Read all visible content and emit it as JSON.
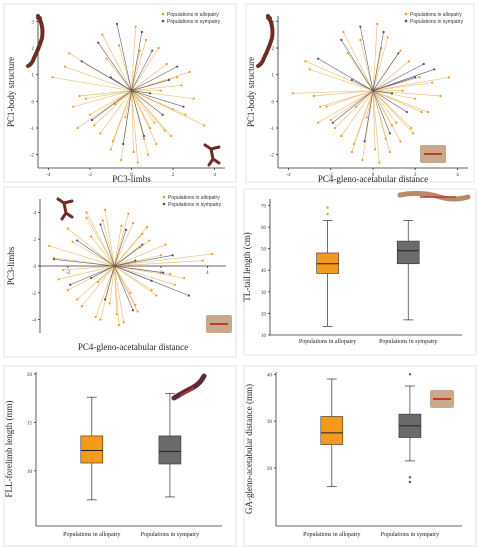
{
  "colors": {
    "allopatry": "#F39A1E",
    "allopatry_vector": "#E8B866",
    "sympatry": "#4A4F63",
    "sympatry_box": "#6B6B6B",
    "frame": "#DDDDDD",
    "animal": "#6E2E28",
    "animal_hand": "#C9A98A"
  },
  "legend": {
    "allopatry": "Populations in allopatry",
    "sympatry": "Populations in sympatry"
  },
  "chart_data": [
    {
      "type": "scatter",
      "subtype": "biplot-vectors",
      "xlabel": "PC3-limbs",
      "ylabel": "PC1-body structure",
      "xticks": [
        "-4",
        "-2",
        "0",
        "2",
        "4"
      ],
      "yticks": [
        "-2",
        "-1",
        "0",
        "1",
        "2",
        "3"
      ],
      "xlim": [
        -4.5,
        4.5
      ],
      "ylim": [
        -2.5,
        3.2
      ],
      "origin": [
        0,
        0.4
      ],
      "series": [
        {
          "name": "Populations in allopatry",
          "x": [
            -3.8,
            -3.2,
            -2.5,
            -2.0,
            -1.5,
            -1.0,
            -0.5,
            0.3,
            0.8,
            1.2,
            1.6,
            2.0,
            2.4,
            2.8,
            3.5,
            -2.8,
            -1.8,
            -0.9,
            0.1,
            0.6,
            1.1,
            1.9,
            -3.0,
            -2.2,
            -0.3,
            0.9,
            1.4,
            2.2,
            -1.2,
            -0.6,
            0.4,
            1.7,
            2.6,
            -2.6,
            -1.4,
            0.2,
            0.7,
            1.3,
            3.0,
            -0.8
          ],
          "y": [
            0.9,
            1.3,
            0.2,
            -0.5,
            -1.2,
            -1.8,
            -2.2,
            -2.3,
            -2.0,
            -1.6,
            -1.1,
            -0.3,
            0.6,
            1.1,
            -0.9,
            -0.2,
            -0.9,
            -1.5,
            -1.9,
            -1.4,
            -0.8,
            -1.3,
            1.8,
            0.1,
            -0.6,
            -1.0,
            0.4,
            0.9,
            1.6,
            2.1,
            1.9,
            1.4,
            -0.5,
            -1.0,
            2.5,
            2.8,
            2.3,
            2.0,
            0.1,
            -0.1
          ]
        },
        {
          "name": "Populations in sympatry",
          "x": [
            -2.4,
            -1.6,
            -0.7,
            0.5,
            1.0,
            1.8,
            2.5,
            -1.9,
            -0.4,
            0.6,
            1.5,
            2.2,
            -1.0,
            0.9
          ],
          "y": [
            1.5,
            2.2,
            2.9,
            2.6,
            1.9,
            0.8,
            -0.2,
            -0.7,
            -1.6,
            -1.3,
            -0.5,
            1.3,
            0.9,
            0.3
          ]
        }
      ]
    },
    {
      "type": "scatter",
      "subtype": "biplot-vectors",
      "xlabel": "PC4-gleno-acetabular distance",
      "ylabel": "PC1-body structure",
      "xticks": [
        "-4",
        "-2",
        "0",
        "2",
        "4"
      ],
      "yticks": [
        "-2",
        "-1",
        "0",
        "1",
        "2",
        "3"
      ],
      "xlim": [
        -4.5,
        4.5
      ],
      "ylim": [
        -2.5,
        3.2
      ],
      "origin": [
        0,
        0.4
      ],
      "series": [
        {
          "name": "Populations in allopatry",
          "x": [
            -3.8,
            -3.0,
            -2.5,
            -2.0,
            -1.5,
            -1.0,
            -0.5,
            0.3,
            0.8,
            1.3,
            1.8,
            2.3,
            2.8,
            3.6,
            -2.8,
            -1.8,
            -0.9,
            0.1,
            0.6,
            1.1,
            1.9,
            -3.2,
            -2.2,
            -0.3,
            0.9,
            1.4,
            2.2,
            -1.2,
            -0.6,
            0.4,
            1.7,
            2.6,
            -2.6,
            -1.4,
            0.2,
            0.7,
            1.3,
            3.2,
            -0.8,
            2.0
          ],
          "y": [
            0.3,
            1.2,
            -0.2,
            -0.7,
            -1.3,
            -1.9,
            -2.2,
            -2.3,
            -1.9,
            -1.5,
            -1.0,
            -0.4,
            0.7,
            0.9,
            0.2,
            -1.0,
            -1.6,
            -1.8,
            -1.4,
            -0.8,
            -1.2,
            1.5,
            -0.2,
            -0.6,
            -0.9,
            0.4,
            0.9,
            1.8,
            2.3,
            2.0,
            1.5,
            -0.4,
            -0.8,
            2.6,
            2.9,
            2.4,
            1.9,
            0.2,
            -0.2,
            0.1
          ]
        },
        {
          "name": "Populations in sympatry",
          "x": [
            -2.6,
            -1.5,
            -0.6,
            0.5,
            1.2,
            2.0,
            2.9,
            -1.9,
            -0.4,
            0.8,
            1.6,
            2.4,
            -1.0,
            0.9
          ],
          "y": [
            1.6,
            2.3,
            2.8,
            2.6,
            1.8,
            0.9,
            1.2,
            -0.8,
            -1.5,
            -1.2,
            -0.4,
            1.4,
            0.8,
            0.3
          ]
        }
      ]
    },
    {
      "type": "scatter",
      "subtype": "biplot-vectors",
      "xlabel": "PC4-gleno-acetabular distance",
      "ylabel": "PC3-limbs",
      "xticks": [
        "-2",
        "0",
        "2",
        "4"
      ],
      "yticks": [
        "-4",
        "-2",
        "0",
        "2",
        "4"
      ],
      "xlim": [
        -3.2,
        4.8
      ],
      "ylim": [
        -5.0,
        5.0
      ],
      "origin": [
        0,
        0
      ],
      "series": [
        {
          "name": "Populations in allopatry",
          "x": [
            -2.8,
            -2.4,
            -2.0,
            -1.6,
            -1.2,
            -0.8,
            -0.4,
            0.2,
            0.6,
            1.0,
            1.4,
            1.8,
            2.2,
            2.6,
            3.8,
            4.2,
            -2.2,
            -1.4,
            -0.6,
            0.4,
            0.8,
            1.6,
            -2.6,
            -1.8,
            -0.2,
            0.9,
            1.2,
            2.0,
            -1.0,
            -0.5,
            0.3,
            1.5,
            2.4,
            -2.0,
            -1.2,
            0.1,
            0.7,
            1.1,
            3.0,
            -0.7
          ],
          "y": [
            1.5,
            -1.0,
            2.8,
            -2.5,
            3.6,
            -3.8,
            4.2,
            -4.4,
            3.9,
            -3.4,
            2.9,
            -2.2,
            1.6,
            -1.4,
            0.4,
            0.9,
            -0.3,
            -3.0,
            -4.0,
            -4.2,
            3.2,
            -1.8,
            0.6,
            1.8,
            -2.8,
            -2.9,
            2.4,
            0.8,
            2.2,
            3.4,
            3.0,
            1.9,
            -0.6,
            -1.8,
            4.0,
            -3.6,
            -2.0,
            1.4,
            -0.9,
            -1.2
          ]
        },
        {
          "name": "Populations in sympatry",
          "x": [
            -2.6,
            -1.6,
            -0.6,
            0.5,
            1.2,
            2.1,
            3.2,
            -1.9,
            -0.4,
            0.8,
            1.6,
            2.5,
            -1.0,
            0.9
          ],
          "y": [
            0.5,
            1.9,
            3.1,
            2.7,
            1.6,
            -0.5,
            -2.2,
            -1.4,
            -2.5,
            -3.3,
            -1.1,
            0.8,
            -0.9,
            0.4
          ]
        }
      ]
    },
    {
      "type": "box",
      "ylabel": "TL-tail length (cm)",
      "yticks": [
        "10",
        "20",
        "30",
        "40",
        "50",
        "60",
        "70"
      ],
      "ylim": [
        10,
        73
      ],
      "categories": [
        "Populations in allopatry",
        "Populations in sympatry"
      ],
      "boxes": [
        {
          "min": 14,
          "q1": 38.5,
          "median": 43,
          "q3": 48,
          "max": 63,
          "outliers": [
            66,
            69
          ]
        },
        {
          "min": 17,
          "q1": 43,
          "median": 49,
          "q3": 53.5,
          "max": 63,
          "outliers": []
        }
      ]
    },
    {
      "type": "box",
      "ylabel": "FLL-forelimb length (mm)",
      "yticks": [
        "10",
        "15",
        "20"
      ],
      "ylim": [
        4.3,
        20.2
      ],
      "categories": [
        "Populations in allopatry",
        "Populations in sympatry"
      ],
      "boxes": [
        {
          "min": 7,
          "q1": 10.8,
          "median": 12.1,
          "q3": 13.6,
          "max": 17.6,
          "outliers": []
        },
        {
          "min": 7.3,
          "q1": 10.7,
          "median": 12,
          "q3": 13.6,
          "max": 18,
          "outliers": []
        }
      ]
    },
    {
      "type": "box",
      "ylabel": "GA-gleno-acetabular distance (mm)",
      "yticks": [
        "20",
        "30",
        "40"
      ],
      "ylim": [
        7.6,
        40.5
      ],
      "categories": [
        "Populations in allopatry",
        "Populations in sympatry"
      ],
      "boxes": [
        {
          "min": 16,
          "q1": 25,
          "median": 27.5,
          "q3": 31,
          "max": 39,
          "outliers": []
        },
        {
          "min": 21.5,
          "q1": 26.5,
          "median": 29,
          "q3": 31.5,
          "max": 37.5,
          "outliers": [
            40,
            18,
            17
          ]
        }
      ]
    }
  ]
}
